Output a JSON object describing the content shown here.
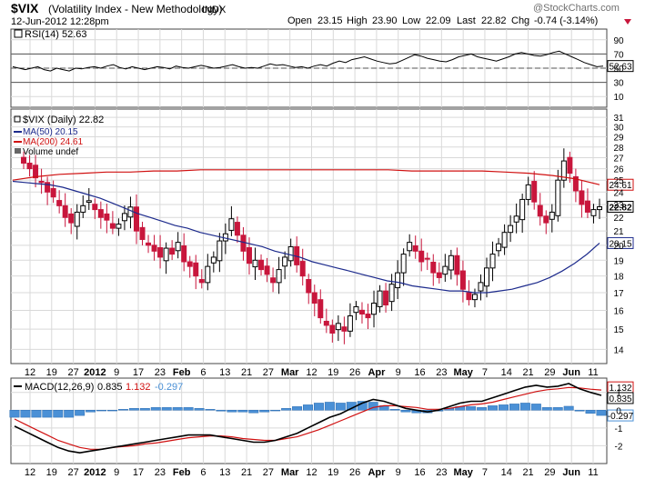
{
  "header": {
    "symbol": "$VIX",
    "name": "(Volatility Index - New Methodology)",
    "exchange": "INDX",
    "date": "12-Jun-2012 12:28pm",
    "watermark": "@StockCharts.com",
    "open_label": "Open",
    "open": "23.15",
    "high_label": "High",
    "high": "23.90",
    "low_label": "Low",
    "low": "22.09",
    "last_label": "Last",
    "last": "22.82",
    "chg_label": "Chg",
    "chg": "-0.74 (-3.14%)"
  },
  "colors": {
    "up": "#000000",
    "down": "#c8163c",
    "ma50": "#1c2a8c",
    "ma200": "#d01010",
    "macd": "#000000",
    "signal": "#d01010",
    "hist": "#4a90d6",
    "grid": "#d9d9d9"
  },
  "chart_data": [
    {
      "type": "line",
      "legend": "RSI(14) 52.63",
      "series": [
        {
          "name": "RSI(14)",
          "values": [
            52,
            50,
            48,
            50,
            52,
            48,
            46,
            50,
            48,
            46,
            50,
            49,
            51,
            52,
            50,
            53,
            55,
            51,
            49,
            52,
            50,
            48,
            50,
            52,
            51,
            49,
            53,
            51,
            50,
            52,
            54,
            52,
            50,
            51,
            53,
            55,
            52,
            50,
            51,
            50,
            53,
            56,
            54,
            55,
            53,
            51,
            52,
            50,
            53,
            55,
            53,
            57,
            60,
            58,
            62,
            64,
            66,
            63,
            60,
            58,
            56,
            57,
            61,
            65,
            69,
            67,
            64,
            62,
            60,
            59,
            62,
            66,
            68,
            70,
            66,
            64,
            62,
            60,
            63,
            66,
            70,
            72,
            70,
            68,
            67,
            69,
            72,
            74,
            70,
            66,
            62,
            58,
            55,
            52,
            53
          ]
        }
      ],
      "ylim": [
        0,
        100
      ],
      "yticks": [
        10,
        30,
        50,
        70,
        90
      ],
      "reference_lines": [
        30,
        70
      ],
      "last_value": "52.63"
    },
    {
      "type": "candlestick",
      "legend": [
        "$VIX (Daily) 22.82",
        "MA(50) 20.15",
        "MA(200) 24.61",
        "Volume undef"
      ],
      "x_labels": [
        "12",
        "19",
        "27",
        "2012",
        "9",
        "17",
        "23",
        "Feb",
        "6",
        "13",
        "21",
        "27",
        "Mar",
        "12",
        "19",
        "26",
        "Apr",
        "9",
        "16",
        "23",
        "May",
        "7",
        "14",
        "21",
        "29",
        "Jun",
        "11"
      ],
      "ylim": [
        13.5,
        31.5
      ],
      "scale": "log",
      "yticks": [
        14,
        15,
        16,
        17,
        18,
        19,
        20,
        21,
        22,
        23,
        24,
        25,
        26,
        27,
        28,
        29,
        30,
        31
      ],
      "closes": [
        26.5,
        26.0,
        25.2,
        24.8,
        24.0,
        23.6,
        22.9,
        22.0,
        21.6,
        22.4,
        22.9,
        23.3,
        22.6,
        22.0,
        21.8,
        21.2,
        21.5,
        22.3,
        22.8,
        21.0,
        20.4,
        20.0,
        19.6,
        19.2,
        19.8,
        19.4,
        20.2,
        18.9,
        18.6,
        18.0,
        17.6,
        18.6,
        19.2,
        20.3,
        20.8,
        21.9,
        20.7,
        19.6,
        18.8,
        19.0,
        18.4,
        18.1,
        17.6,
        18.4,
        19.2,
        19.9,
        18.7,
        18.0,
        17.0,
        16.4,
        15.6,
        15.2,
        14.8,
        15.3,
        14.9,
        15.7,
        16.2,
        15.8,
        15.6,
        16.4,
        17.1,
        16.3,
        17.5,
        18.2,
        19.4,
        20.2,
        19.6,
        18.9,
        19.1,
        18.2,
        17.9,
        18.6,
        19.3,
        18.1,
        17.2,
        16.6,
        16.9,
        17.6,
        18.5,
        19.4,
        20.1,
        20.9,
        21.4,
        22.1,
        23.4,
        24.6,
        23.2,
        22.1,
        21.6,
        22.4,
        25.0,
        26.7,
        25.6,
        24.1,
        23.0,
        22.4,
        22.6,
        22.82
      ],
      "last_value": "22.82",
      "ma50": {
        "values": [
          24.9,
          24.8,
          24.7,
          24.6,
          24.4,
          24.1,
          23.8,
          23.5,
          23.1,
          22.7,
          22.3,
          22.0,
          21.7,
          21.4,
          21.2,
          20.9,
          20.7,
          20.5,
          20.3,
          20.1,
          19.9,
          19.6,
          19.4,
          19.2,
          18.9,
          18.7,
          18.5,
          18.3,
          18.1,
          17.9,
          17.7,
          17.6,
          17.4,
          17.3,
          17.2,
          17.1,
          17.1,
          17.0,
          17.0,
          17.1,
          17.2,
          17.4,
          17.6,
          17.9,
          18.3,
          18.8,
          19.4,
          20.15
        ],
        "last_value": "20.15"
      },
      "ma200": {
        "values": [
          25.0,
          25.3,
          25.5,
          25.6,
          25.7,
          25.7,
          25.8,
          25.8,
          25.9,
          25.9,
          25.9,
          25.9,
          25.9,
          25.9,
          25.9,
          25.9,
          25.9,
          25.8,
          25.8,
          25.8,
          25.8,
          25.7,
          25.6,
          25.4,
          25.1,
          24.61
        ],
        "last_value": "24.61"
      }
    },
    {
      "type": "line",
      "legend": {
        "label": "MACD(12,26,9)",
        "macd": "0.835",
        "signal": "1.132",
        "hist": "-0.297"
      },
      "ylim": [
        -2.8,
        1.6
      ],
      "yticks": [
        -2,
        -1,
        0,
        1
      ],
      "x_labels": [
        "12",
        "19",
        "27",
        "2012",
        "9",
        "17",
        "23",
        "Feb",
        "6",
        "13",
        "21",
        "27",
        "Mar",
        "12",
        "19",
        "26",
        "Apr",
        "9",
        "16",
        "23",
        "May",
        "7",
        "14",
        "21",
        "29",
        "Jun",
        "11"
      ],
      "series": [
        {
          "name": "MACD",
          "values": [
            -0.9,
            -1.2,
            -1.5,
            -1.8,
            -2.1,
            -2.3,
            -2.4,
            -2.3,
            -2.2,
            -2.1,
            -2.0,
            -1.9,
            -1.8,
            -1.7,
            -1.6,
            -1.5,
            -1.4,
            -1.4,
            -1.4,
            -1.5,
            -1.6,
            -1.7,
            -1.8,
            -1.8,
            -1.7,
            -1.5,
            -1.3,
            -1.0,
            -0.7,
            -0.4,
            -0.2,
            0.1,
            0.4,
            0.6,
            0.5,
            0.3,
            0.1,
            0.0,
            -0.1,
            0.0,
            0.2,
            0.4,
            0.5,
            0.5,
            0.7,
            0.9,
            1.1,
            1.3,
            1.4,
            1.3,
            1.35,
            1.5,
            1.2,
            1.0,
            0.835
          ]
        },
        {
          "name": "Signal",
          "values": [
            -0.5,
            -0.8,
            -1.1,
            -1.4,
            -1.7,
            -1.9,
            -2.1,
            -2.2,
            -2.2,
            -2.1,
            -2.05,
            -2.0,
            -1.9,
            -1.85,
            -1.75,
            -1.65,
            -1.55,
            -1.5,
            -1.45,
            -1.45,
            -1.5,
            -1.6,
            -1.65,
            -1.7,
            -1.7,
            -1.6,
            -1.5,
            -1.3,
            -1.1,
            -0.85,
            -0.6,
            -0.35,
            -0.1,
            0.15,
            0.25,
            0.25,
            0.2,
            0.15,
            0.05,
            0.05,
            0.1,
            0.2,
            0.3,
            0.35,
            0.45,
            0.6,
            0.75,
            0.9,
            1.05,
            1.15,
            1.2,
            1.28,
            1.25,
            1.18,
            1.132
          ]
        },
        {
          "name": "Histogram",
          "values": [
            -0.4,
            -0.4,
            -0.4,
            -0.4,
            -0.4,
            -0.4,
            -0.3,
            -0.1,
            0.0,
            0.0,
            0.05,
            0.1,
            0.1,
            0.15,
            0.15,
            0.15,
            0.15,
            0.1,
            0.05,
            -0.05,
            -0.1,
            -0.1,
            -0.15,
            -0.1,
            0.0,
            0.1,
            0.2,
            0.3,
            0.4,
            0.45,
            0.4,
            0.45,
            0.5,
            0.45,
            0.25,
            0.05,
            -0.1,
            -0.15,
            -0.15,
            -0.05,
            0.1,
            0.2,
            0.2,
            0.15,
            0.25,
            0.3,
            0.35,
            0.4,
            0.35,
            0.15,
            0.15,
            0.22,
            -0.05,
            -0.18,
            -0.297
          ]
        }
      ],
      "last_values": [
        "1.132",
        "0.835",
        "-0.297"
      ]
    }
  ]
}
